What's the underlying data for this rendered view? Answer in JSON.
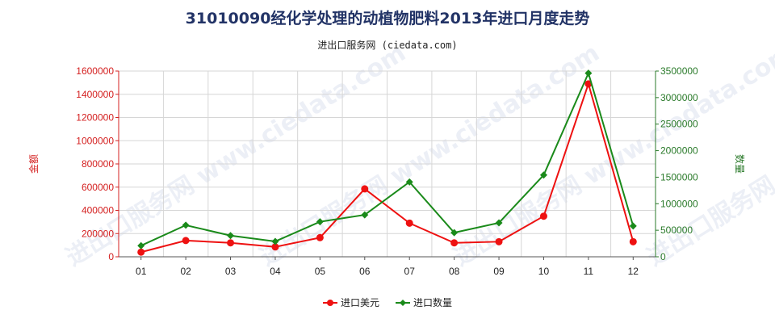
{
  "chart_data": {
    "type": "line",
    "title": "31010090经化学处理的动植物肥料2013年进口月度走势",
    "subtitle": "进出口服务网 (ciedata.com)",
    "ylabel_left": "金额",
    "ylabel_right": "数量",
    "categories": [
      "01",
      "02",
      "03",
      "04",
      "05",
      "06",
      "07",
      "08",
      "09",
      "10",
      "11",
      "12"
    ],
    "ylim_left": [
      0,
      1600000
    ],
    "ylim_right": [
      0,
      3500000
    ],
    "yticks_left": [
      "0",
      "200000",
      "400000",
      "600000",
      "800000",
      "1000000",
      "1200000",
      "1400000",
      "1600000"
    ],
    "yticks_right": [
      "0",
      "500000",
      "1000000",
      "1500000",
      "2000000",
      "2500000",
      "3000000",
      "3500000"
    ],
    "grid": true,
    "legend_position": "bottom",
    "series": [
      {
        "name": "进口美元",
        "axis": "left",
        "color": "#ee1111",
        "marker": "circle",
        "values": [
          40000,
          140000,
          120000,
          85000,
          165000,
          585000,
          290000,
          120000,
          130000,
          350000,
          1490000,
          130000
        ]
      },
      {
        "name": "进口数量",
        "axis": "right",
        "color": "#1a8a1a",
        "marker": "diamond",
        "values": [
          210000,
          595000,
          400000,
          290000,
          660000,
          790000,
          1410000,
          455000,
          640000,
          1540000,
          3460000,
          580000
        ]
      }
    ]
  },
  "watermark": "进出口服务网 www.ciedata.com"
}
